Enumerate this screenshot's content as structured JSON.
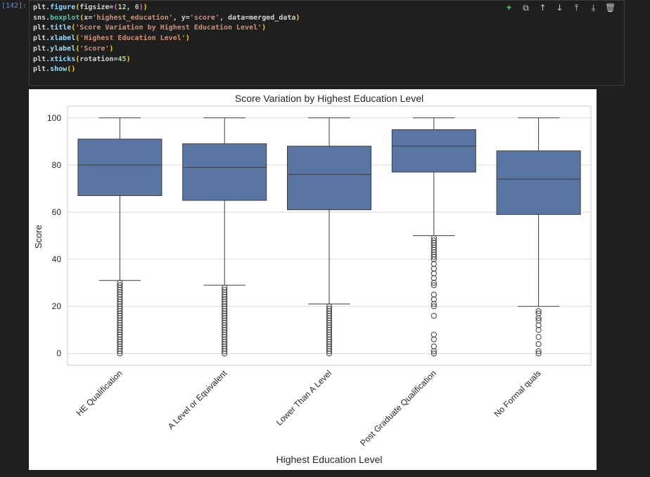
{
  "cell": {
    "exec_count": "[142]:",
    "code_lines": [
      "plt.figure(figsize=(12, 6))",
      "sns.boxplot(x='highest_education', y='score', data=merged_data)",
      "plt.title('Score Variation by Highest Education Level')",
      "plt.xlabel('Highest Education Level')",
      "plt.ylabel('Score')",
      "plt.xticks(rotation=45)",
      "plt.show()"
    ],
    "toolbar": [
      "sparkle-icon",
      "copy-icon",
      "arrow-up-icon",
      "arrow-down-icon",
      "insert-above-icon",
      "insert-below-icon",
      "trash-icon"
    ]
  },
  "chart_data": {
    "type": "box",
    "title": "Score Variation by Highest Education Level",
    "xlabel": "Highest Education Level",
    "ylabel": "Score",
    "ylim": [
      -5,
      105
    ],
    "yticks": [
      0,
      20,
      40,
      60,
      80,
      100
    ],
    "grid": true,
    "color": "#5975a4",
    "categories": [
      "HE Qualification",
      "A Level or Equivalent",
      "Lower Than A Level",
      "Post Graduate Qualification",
      "No Formal quals"
    ],
    "boxes": [
      {
        "whislo": 31,
        "q1": 67,
        "med": 80,
        "q3": 91,
        "whishi": 100,
        "fliers": [
          0,
          1,
          2,
          3,
          4,
          5,
          6,
          7,
          8,
          9,
          10,
          11,
          12,
          13,
          14,
          15,
          16,
          17,
          18,
          19,
          20,
          21,
          22,
          23,
          24,
          25,
          26,
          27,
          28,
          29,
          30
        ]
      },
      {
        "whislo": 29,
        "q1": 65,
        "med": 79,
        "q3": 89,
        "whishi": 100,
        "fliers": [
          0,
          1,
          2,
          3,
          4,
          5,
          6,
          7,
          8,
          9,
          10,
          11,
          12,
          13,
          14,
          15,
          16,
          17,
          18,
          19,
          20,
          21,
          22,
          23,
          24,
          25,
          26,
          27,
          28
        ]
      },
      {
        "whislo": 21,
        "q1": 61,
        "med": 76,
        "q3": 88,
        "whishi": 100,
        "fliers": [
          0,
          1,
          2,
          3,
          4,
          5,
          6,
          7,
          8,
          9,
          10,
          11,
          12,
          13,
          14,
          15,
          16,
          17,
          18,
          19,
          20
        ]
      },
      {
        "whislo": 50,
        "q1": 77,
        "med": 88,
        "q3": 95,
        "whishi": 100,
        "fliers": [
          0,
          1,
          3,
          6,
          8,
          16,
          20,
          21,
          23,
          25,
          29,
          30,
          32,
          34,
          36,
          38,
          40,
          41,
          42,
          43,
          44,
          45,
          46,
          47,
          48,
          49
        ]
      },
      {
        "whislo": 20,
        "q1": 59,
        "med": 74,
        "q3": 86,
        "whishi": 100,
        "fliers": [
          0,
          1,
          4,
          7,
          10,
          12,
          14,
          15,
          17,
          18
        ]
      }
    ]
  }
}
